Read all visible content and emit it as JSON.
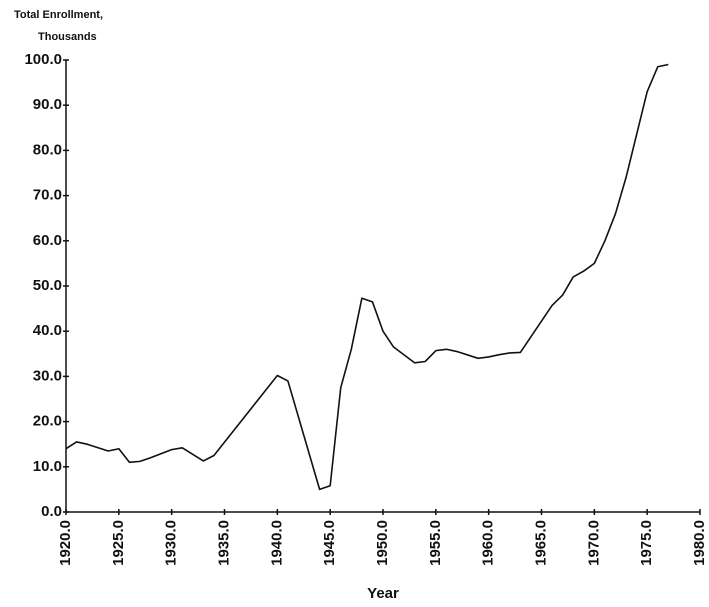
{
  "chart_data": {
    "type": "line",
    "ylabel": [
      "Total Enrollment,",
      "Thousands"
    ],
    "xlabel": "Year",
    "x": [
      1920,
      1921,
      1922,
      1924,
      1925,
      1926,
      1927,
      1928,
      1930,
      1931,
      1933,
      1934,
      1940,
      1941,
      1944,
      1945,
      1946,
      1947,
      1948,
      1949,
      1950,
      1951,
      1953,
      1954,
      1955,
      1956,
      1957,
      1959,
      1960,
      1961,
      1962,
      1963,
      1966,
      1967,
      1968,
      1969,
      1970,
      1971,
      1972,
      1973,
      1974,
      1975,
      1976,
      1977
    ],
    "values": [
      14,
      15.5,
      15,
      13.5,
      14,
      11,
      11.2,
      12,
      13.8,
      14.2,
      11.3,
      12.5,
      30.2,
      29,
      5,
      5.8,
      27.5,
      36,
      47.3,
      46.5,
      40,
      36.5,
      33,
      33.3,
      35.7,
      36,
      35.5,
      34,
      34.3,
      34.8,
      35.2,
      35.3,
      45.7,
      48,
      52,
      53.3,
      55,
      60,
      66,
      74,
      83.5,
      93,
      98.5,
      99
    ],
    "color": "#111111",
    "xlim": [
      1920,
      1980
    ],
    "ylim": [
      0,
      100
    ],
    "xticks": [
      {
        "value": 1920,
        "label": "1920.0"
      },
      {
        "value": 1925,
        "label": "1925.0"
      },
      {
        "value": 1930,
        "label": "1930.0"
      },
      {
        "value": 1935,
        "label": "1935.0"
      },
      {
        "value": 1940,
        "label": "1940.0"
      },
      {
        "value": 1945,
        "label": "1945.0"
      },
      {
        "value": 1950,
        "label": "1950.0"
      },
      {
        "value": 1955,
        "label": "1955.0"
      },
      {
        "value": 1960,
        "label": "1960.0"
      },
      {
        "value": 1965,
        "label": "1965.0"
      },
      {
        "value": 1970,
        "label": "1970.0"
      },
      {
        "value": 1975,
        "label": "1975.0"
      },
      {
        "value": 1980,
        "label": "1980.0"
      }
    ],
    "yticks": [
      {
        "value": 0,
        "label": "0.0"
      },
      {
        "value": 10,
        "label": "10.0"
      },
      {
        "value": 20,
        "label": "20.0"
      },
      {
        "value": 30,
        "label": "30.0"
      },
      {
        "value": 40,
        "label": "40.0"
      },
      {
        "value": 50,
        "label": "50.0"
      },
      {
        "value": 60,
        "label": "60.0"
      },
      {
        "value": 70,
        "label": "70.0"
      },
      {
        "value": 80,
        "label": "80.0"
      },
      {
        "value": 90,
        "label": "90.0"
      },
      {
        "value": 100,
        "label": "100.0"
      }
    ],
    "grid": false
  }
}
